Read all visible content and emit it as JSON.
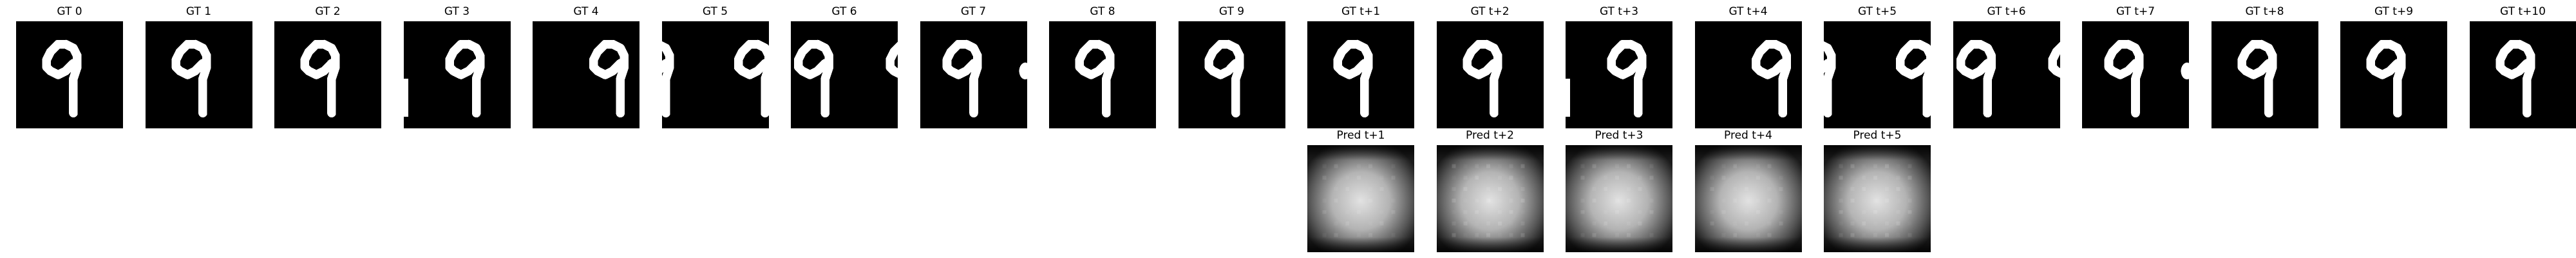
{
  "gt_frames": [
    {
      "title": "GT 0",
      "variant": "digit"
    },
    {
      "title": "GT 1",
      "variant": "digit"
    },
    {
      "title": "GT 2",
      "variant": "digit"
    },
    {
      "title": "GT 3",
      "variant": "digit-edge"
    },
    {
      "title": "GT 4",
      "variant": "split-a"
    },
    {
      "title": "GT 5",
      "variant": "split-b"
    },
    {
      "title": "GT 6",
      "variant": "split-c"
    },
    {
      "title": "GT 7",
      "variant": "digit-dot"
    },
    {
      "title": "GT 8",
      "variant": "digit"
    },
    {
      "title": "GT 9",
      "variant": "digit"
    },
    {
      "title": "GT t+1",
      "variant": "digit"
    },
    {
      "title": "GT t+2",
      "variant": "digit"
    },
    {
      "title": "GT t+3",
      "variant": "digit-edge"
    },
    {
      "title": "GT t+4",
      "variant": "split-a"
    },
    {
      "title": "GT t+5",
      "variant": "split-b"
    },
    {
      "title": "GT t+6",
      "variant": "split-c"
    },
    {
      "title": "GT t+7",
      "variant": "digit-dot"
    },
    {
      "title": "GT t+8",
      "variant": "digit"
    },
    {
      "title": "GT t+9",
      "variant": "digit"
    },
    {
      "title": "GT t+10",
      "variant": "digit"
    }
  ],
  "pred_frames": [
    {
      "title": "Pred t+1"
    },
    {
      "title": "Pred t+2"
    },
    {
      "title": "Pred t+3"
    },
    {
      "title": "Pred t+4"
    },
    {
      "title": "Pred t+5"
    }
  ]
}
